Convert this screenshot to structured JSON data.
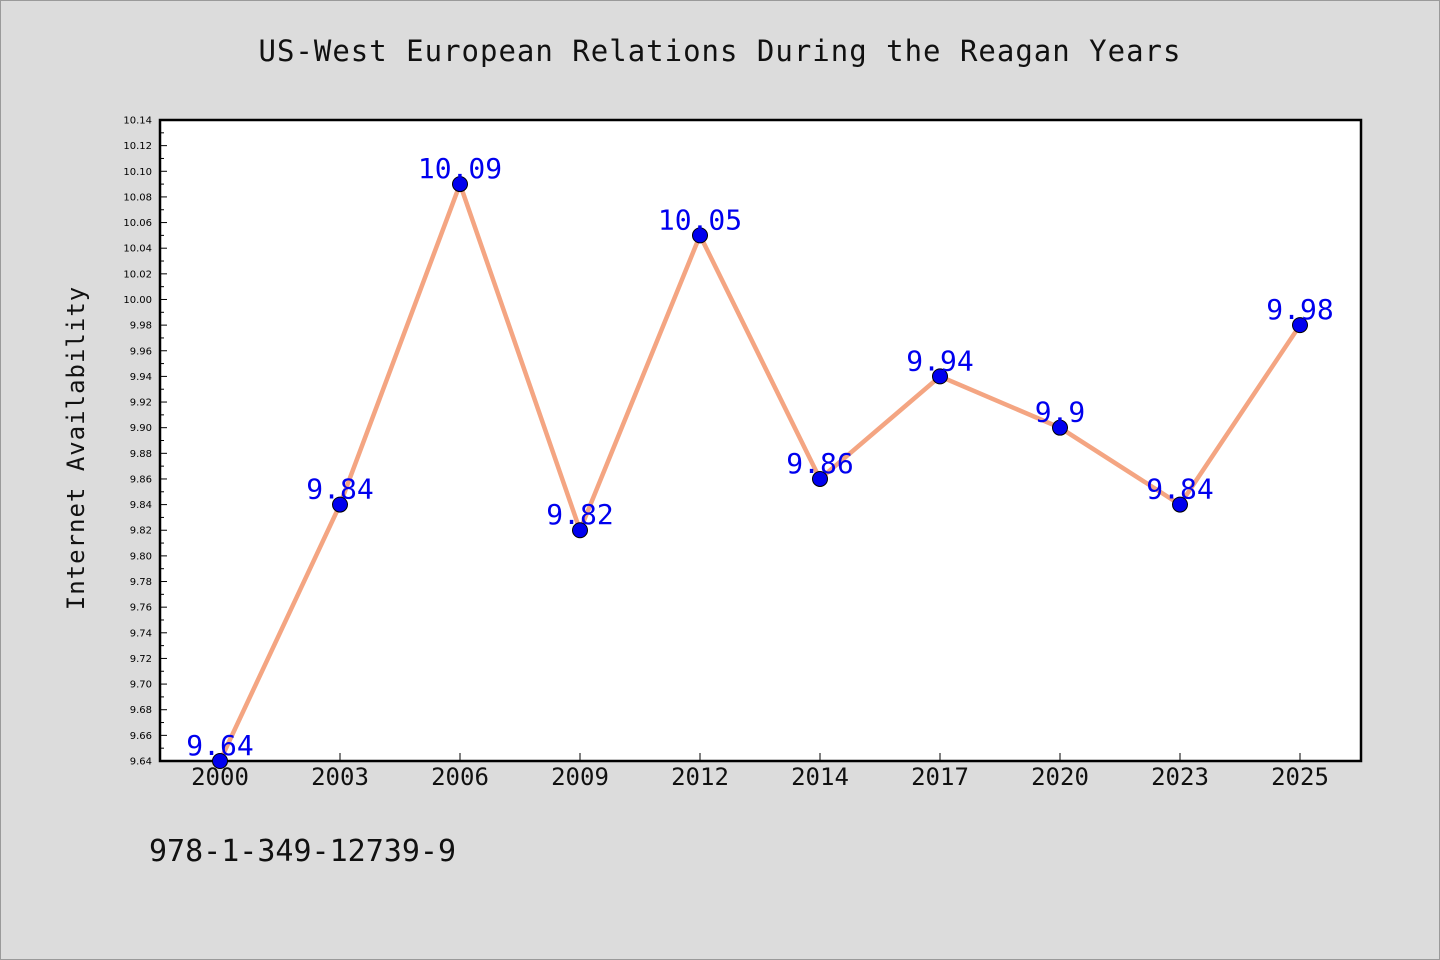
{
  "chart_data": {
    "type": "line",
    "title": "US-West European Relations During the Reagan Years",
    "xlabel": "",
    "ylabel": "Internet Availability",
    "categories": [
      "2000",
      "2003",
      "2006",
      "2009",
      "2012",
      "2014",
      "2017",
      "2020",
      "2023",
      "2025"
    ],
    "values": [
      9.64,
      9.84,
      10.09,
      9.82,
      10.05,
      9.86,
      9.94,
      9.9,
      9.84,
      9.98
    ],
    "data_labels": [
      "9.64",
      "9.84",
      "10.09",
      "9.82",
      "10.05",
      "9.86",
      "9.94",
      "9.9",
      "9.84",
      "9.98"
    ],
    "ylim": [
      9.64,
      10.14
    ],
    "y_ticks": [
      "9.64",
      "9.66",
      "9.68",
      "9.70",
      "9.72",
      "9.74",
      "9.76",
      "9.78",
      "9.80",
      "9.82",
      "9.84",
      "9.86",
      "9.88",
      "9.90",
      "9.92",
      "9.94",
      "9.96",
      "9.98",
      "10.00",
      "10.02",
      "10.04",
      "10.06",
      "10.08",
      "10.10",
      "10.12",
      "10.14"
    ],
    "grid": false,
    "line_color": "#f4a582",
    "marker_color": "#0000ee",
    "label_color": "#0000ee"
  },
  "footer": {
    "isbn": "978-1-349-12739-9"
  }
}
